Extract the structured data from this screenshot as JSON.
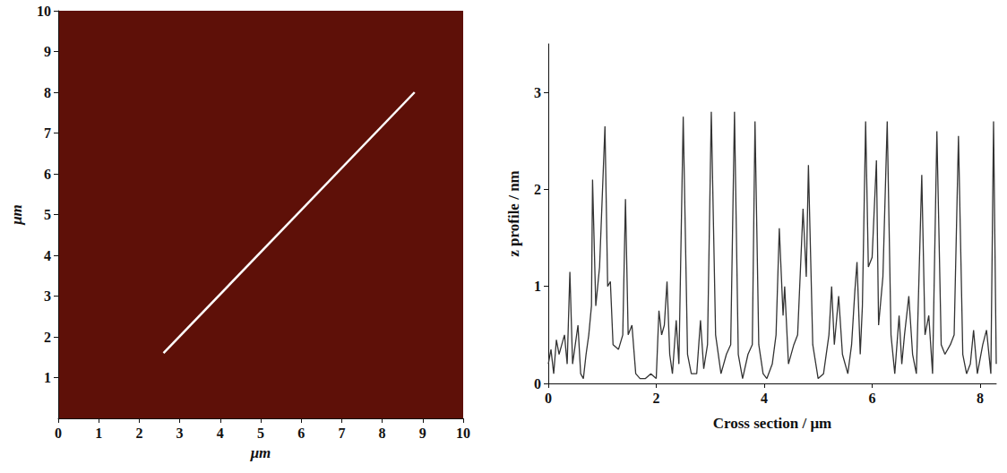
{
  "chart_data": [
    {
      "type": "image",
      "x_label": "μm",
      "y_label": "μm",
      "xlim": [
        0,
        10
      ],
      "xticks": [
        0,
        1,
        2,
        3,
        4,
        5,
        6,
        7,
        8,
        9,
        10
      ],
      "ylim": [
        0,
        10
      ],
      "yticks": [
        1,
        2,
        3,
        4,
        5,
        6,
        7,
        8,
        9,
        10
      ],
      "x": [
        2.6,
        8.8
      ],
      "values": [
        1.6,
        8.0
      ],
      "color": "#ffffff"
    },
    {
      "type": "line",
      "x_label": "Cross section / μm",
      "y_label": "z profile / nm",
      "xlim": [
        0,
        8.3
      ],
      "xticks": [
        0,
        2,
        4,
        6,
        8
      ],
      "ylim": [
        0,
        3.5
      ],
      "yticks": [
        0,
        1,
        2,
        3
      ],
      "color": "#333333",
      "x": [
        0,
        0.05,
        0.1,
        0.15,
        0.2,
        0.25,
        0.3,
        0.35,
        0.4,
        0.45,
        0.5,
        0.55,
        0.6,
        0.65,
        0.7,
        0.75,
        0.8,
        0.82,
        0.88,
        0.95,
        1.05,
        1.1,
        1.15,
        1.2,
        1.3,
        1.38,
        1.43,
        1.48,
        1.55,
        1.62,
        1.7,
        1.8,
        1.9,
        2.0,
        2.05,
        2.1,
        2.15,
        2.2,
        2.25,
        2.3,
        2.37,
        2.42,
        2.5,
        2.58,
        2.65,
        2.75,
        2.82,
        2.88,
        2.95,
        3.02,
        3.1,
        3.2,
        3.3,
        3.38,
        3.45,
        3.52,
        3.6,
        3.7,
        3.78,
        3.83,
        3.9,
        3.98,
        4.05,
        4.15,
        4.22,
        4.28,
        4.35,
        4.38,
        4.45,
        4.55,
        4.62,
        4.72,
        4.78,
        4.82,
        4.9,
        5.0,
        5.1,
        5.2,
        5.25,
        5.3,
        5.38,
        5.45,
        5.55,
        5.62,
        5.68,
        5.72,
        5.78,
        5.82,
        5.88,
        5.93,
        6.0,
        6.08,
        6.12,
        6.2,
        6.28,
        6.35,
        6.42,
        6.5,
        6.55,
        6.6,
        6.68,
        6.75,
        6.82,
        6.92,
        6.98,
        7.05,
        7.12,
        7.2,
        7.28,
        7.35,
        7.45,
        7.52,
        7.6,
        7.68,
        7.75,
        7.82,
        7.88,
        7.95,
        8.05,
        8.12,
        8.2,
        8.25,
        8.3
      ],
      "values": [
        0.2,
        0.35,
        0.1,
        0.45,
        0.3,
        0.4,
        0.5,
        0.2,
        1.15,
        0.2,
        0.4,
        0.6,
        0.1,
        0.05,
        0.3,
        0.5,
        0.8,
        2.1,
        0.8,
        1.2,
        2.65,
        1.0,
        1.05,
        0.4,
        0.35,
        0.5,
        1.9,
        0.5,
        0.6,
        0.1,
        0.05,
        0.05,
        0.1,
        0.05,
        0.75,
        0.5,
        0.6,
        1.05,
        0.3,
        0.1,
        0.65,
        0.2,
        2.75,
        0.3,
        0.1,
        0.1,
        0.65,
        0.15,
        0.4,
        2.8,
        0.5,
        0.1,
        0.3,
        0.4,
        2.8,
        0.3,
        0.05,
        0.3,
        0.4,
        2.7,
        0.4,
        0.1,
        0.05,
        0.2,
        0.5,
        1.6,
        0.7,
        1.0,
        0.2,
        0.4,
        0.5,
        1.8,
        1.1,
        2.25,
        0.4,
        0.05,
        0.1,
        0.5,
        1.0,
        0.4,
        0.9,
        0.3,
        0.1,
        0.4,
        0.95,
        1.25,
        0.3,
        0.8,
        2.7,
        1.2,
        1.3,
        2.3,
        0.6,
        1.1,
        2.7,
        0.5,
        0.1,
        0.7,
        0.2,
        0.5,
        0.9,
        0.3,
        0.1,
        2.15,
        0.5,
        0.7,
        0.1,
        2.6,
        0.4,
        0.3,
        0.4,
        0.5,
        2.55,
        0.3,
        0.1,
        0.2,
        0.55,
        0.1,
        0.4,
        0.55,
        0.1,
        2.7,
        0.2
      ]
    }
  ]
}
